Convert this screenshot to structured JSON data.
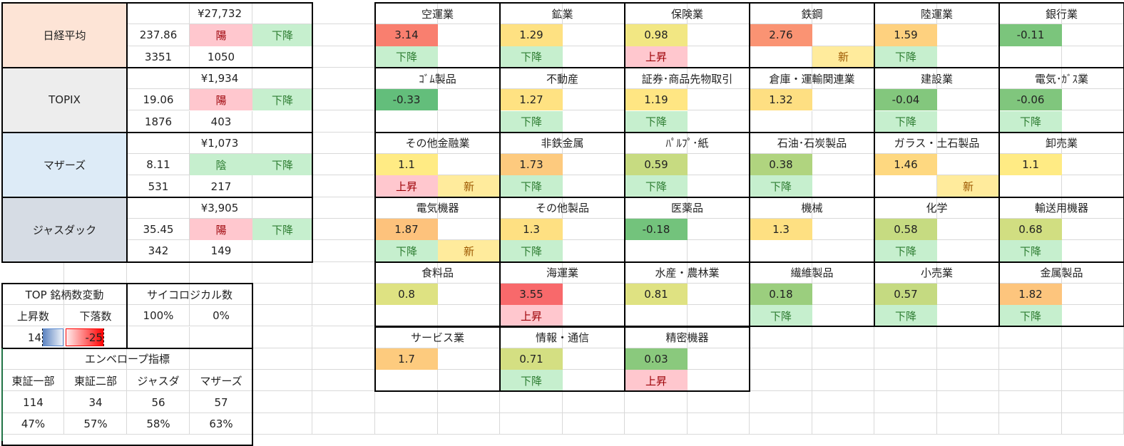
{
  "indices": [
    {
      "name": "日経平均",
      "price": "¥27,732",
      "change": "237.86",
      "candle": "陽",
      "trend": "下降",
      "count1": "3351",
      "count2": "1050",
      "color": "#fde4d6"
    },
    {
      "name": "TOPIX",
      "price": "¥1,934",
      "change": "19.06",
      "candle": "陽",
      "trend": "下降",
      "count1": "1876",
      "count2": "403",
      "color": "#ededed"
    },
    {
      "name": "マザーズ",
      "price": "¥1,073",
      "change": "8.11",
      "candle": "陰",
      "trend": "下降",
      "count1": "531",
      "count2": "217",
      "color": "#ddebf7"
    },
    {
      "name": "ジャスダック",
      "price": "¥3,905",
      "change": "35.45",
      "candle": "陽",
      "trend": "下降",
      "count1": "342",
      "count2": "149",
      "color": "#d6dce4"
    }
  ],
  "top_change": {
    "title": "TOP 銘柄数変動",
    "up_label": "上昇数",
    "down_label": "下落数",
    "up_value": "14",
    "down_value": "-25"
  },
  "psychological": {
    "title": "サイコロジカル数",
    "values": [
      "100%",
      "0%"
    ]
  },
  "envelope": {
    "title": "エンベロープ指標",
    "headers": [
      "東証一部",
      "東証二部",
      "ジャスダ",
      "マザーズ"
    ],
    "counts": [
      "114",
      "34",
      "56",
      "57"
    ],
    "percents": [
      "47%",
      "57%",
      "58%",
      "63%"
    ]
  },
  "status_colors": {
    "down_bg": "#c6efce",
    "up_bg": "#ffc7ce",
    "new_bg": "#ffeb9c"
  },
  "sectors": [
    {
      "name": "空運業",
      "value": "3.14",
      "status": "下降",
      "flag": ""
    },
    {
      "name": "鉱業",
      "value": "1.29",
      "status": "下降",
      "flag": ""
    },
    {
      "name": "保険業",
      "value": "0.98",
      "status": "上昇",
      "flag": ""
    },
    {
      "name": "鉄鋼",
      "value": "2.76",
      "status": "",
      "flag": "新"
    },
    {
      "name": "陸運業",
      "value": "1.59",
      "status": "下降",
      "flag": ""
    },
    {
      "name": "銀行業",
      "value": "-0.11",
      "status": "",
      "flag": ""
    },
    {
      "name": "ｺﾞﾑ製品",
      "value": "-0.33",
      "status": "",
      "flag": ""
    },
    {
      "name": "不動産",
      "value": "1.27",
      "status": "下降",
      "flag": ""
    },
    {
      "name": "証券･商品先物取引",
      "value": "1.19",
      "status": "下降",
      "flag": ""
    },
    {
      "name": "倉庫・運輸関連業",
      "value": "1.32",
      "status": "",
      "flag": ""
    },
    {
      "name": "建設業",
      "value": "-0.04",
      "status": "下降",
      "flag": ""
    },
    {
      "name": "電気･ｶﾞｽ業",
      "value": "-0.06",
      "status": "下降",
      "flag": ""
    },
    {
      "name": "その他金融業",
      "value": "1.1",
      "status": "上昇",
      "flag": "新"
    },
    {
      "name": "非鉄金属",
      "value": "1.73",
      "status": "下降",
      "flag": ""
    },
    {
      "name": "ﾊﾟﾙﾌﾟ･紙",
      "value": "0.59",
      "status": "下降",
      "flag": ""
    },
    {
      "name": "石油･石炭製品",
      "value": "0.38",
      "status": "下降",
      "flag": ""
    },
    {
      "name": "ガラス・土石製品",
      "value": "1.46",
      "status": "",
      "flag": "新"
    },
    {
      "name": "卸売業",
      "value": "1.1",
      "status": "",
      "flag": ""
    },
    {
      "name": "電気機器",
      "value": "1.87",
      "status": "下降",
      "flag": "新"
    },
    {
      "name": "その他製品",
      "value": "1.3",
      "status": "下降",
      "flag": ""
    },
    {
      "name": "医薬品",
      "value": "-0.18",
      "status": "",
      "flag": ""
    },
    {
      "name": "機械",
      "value": "1.3",
      "status": "",
      "flag": ""
    },
    {
      "name": "化学",
      "value": "0.58",
      "status": "下降",
      "flag": ""
    },
    {
      "name": "輸送用機器",
      "value": "0.68",
      "status": "下降",
      "flag": ""
    },
    {
      "name": "食料品",
      "value": "0.8",
      "status": "",
      "flag": ""
    },
    {
      "name": "海運業",
      "value": "3.55",
      "status": "上昇",
      "flag": ""
    },
    {
      "name": "水産・農林業",
      "value": "0.81",
      "status": "",
      "flag": ""
    },
    {
      "name": "繊維製品",
      "value": "0.18",
      "status": "下降",
      "flag": ""
    },
    {
      "name": "小売業",
      "value": "0.57",
      "status": "下降",
      "flag": ""
    },
    {
      "name": "金属製品",
      "value": "1.82",
      "status": "下降",
      "flag": ""
    },
    {
      "name": "サービス業",
      "value": "1.7",
      "status": "",
      "flag": ""
    },
    {
      "name": "情報・通信",
      "value": "0.71",
      "status": "下降",
      "flag": ""
    },
    {
      "name": "精密機器",
      "value": "0.03",
      "status": "上昇",
      "flag": ""
    }
  ]
}
